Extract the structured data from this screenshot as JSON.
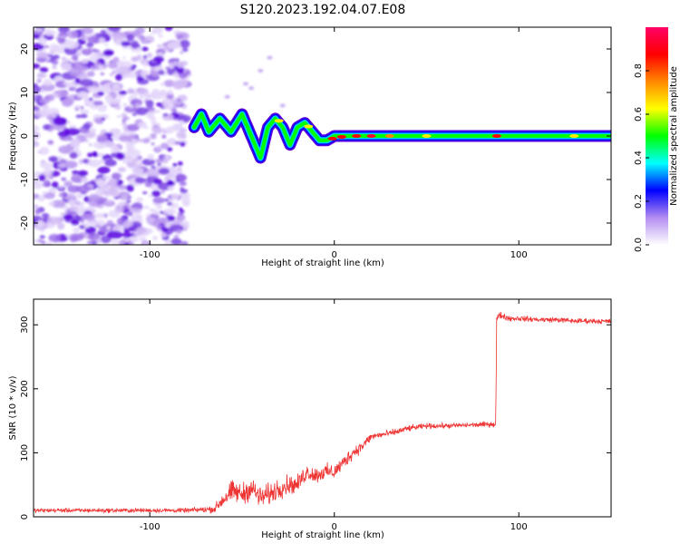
{
  "title": "S120.2023.192.04.07.E08",
  "colors": {
    "accent": "#ee3333",
    "strong": "#5a00e0",
    "light": "#d8c4f7",
    "background": "#ffffff"
  },
  "chart_data": [
    {
      "type": "heatmap",
      "title": "S120.2023.192.04.07.E08",
      "xlabel": "Height of straight line (km)",
      "ylabel": "Frequency (Hz)",
      "xlim": [
        -163,
        150
      ],
      "ylim": [
        -25,
        25
      ],
      "x_ticks": [
        -100,
        0,
        100
      ],
      "y_ticks": [
        -20,
        -10,
        0,
        10,
        20
      ],
      "noise_region": {
        "x_range": [
          -163,
          -80
        ],
        "description_values": "scattered low-to-mid amplitude"
      },
      "ridge": {
        "x": [
          -76,
          -72,
          -68,
          -62,
          -56,
          -50,
          -44,
          -40,
          -36,
          -32,
          -28,
          -24,
          -20,
          -16,
          -12,
          -8,
          -4,
          0,
          10,
          20,
          40,
          60,
          80,
          88,
          100,
          120,
          150
        ],
        "y": [
          2,
          5,
          1,
          4,
          1,
          5,
          -1,
          -5,
          2,
          4,
          2,
          -2,
          2,
          3,
          1,
          -1,
          -1,
          0,
          0,
          0,
          0,
          0,
          0,
          0,
          0,
          0,
          0
        ]
      },
      "colorbar": {
        "label": "Normalized spectral amplitude",
        "range": [
          0.0,
          1.0
        ],
        "ticks": [
          "0.0",
          "0.2",
          "0.4",
          "0.6",
          "0.8"
        ],
        "colors": [
          "#ffffff",
          "#b38cf0",
          "#0000ff",
          "#00ffff",
          "#00ff00",
          "#ffff00",
          "#ff8800",
          "#ff0000",
          "#ff0066"
        ]
      }
    },
    {
      "type": "line",
      "xlabel": "Height of straight line (km)",
      "ylabel": "SNR (10 * v/v)",
      "xlim": [
        -163,
        150
      ],
      "ylim": [
        0,
        340
      ],
      "x_ticks": [
        -100,
        0,
        100
      ],
      "y_ticks": [
        0,
        100,
        200,
        300
      ],
      "series": [
        {
          "color": "#ee3333",
          "x": [
            -163,
            -140,
            -120,
            -100,
            -80,
            -65,
            -60,
            -55,
            -50,
            -45,
            -40,
            -35,
            -30,
            -25,
            -20,
            -15,
            -10,
            -5,
            0,
            5,
            10,
            15,
            20,
            25,
            30,
            40,
            50,
            60,
            70,
            80,
            86,
            87,
            87.5,
            88,
            90,
            95,
            100,
            110,
            120,
            130,
            140,
            150
          ],
          "y": [
            10,
            10,
            10,
            10,
            10,
            12,
            28,
            40,
            35,
            45,
            30,
            35,
            45,
            50,
            50,
            70,
            65,
            70,
            70,
            85,
            100,
            110,
            125,
            128,
            130,
            138,
            142,
            142,
            143,
            144,
            145,
            145,
            145,
            310,
            315,
            310,
            310,
            308,
            308,
            306,
            306,
            305
          ],
          "noise_amplitude": [
            5,
            5,
            5,
            5,
            5,
            8,
            22,
            25,
            25,
            25,
            25,
            25,
            25,
            22,
            20,
            20,
            18,
            18,
            18,
            16,
            15,
            12,
            10,
            8,
            8,
            7,
            6,
            6,
            6,
            6,
            6,
            10,
            20,
            12,
            8,
            7,
            6,
            6,
            6,
            6,
            6,
            6
          ]
        }
      ]
    }
  ]
}
